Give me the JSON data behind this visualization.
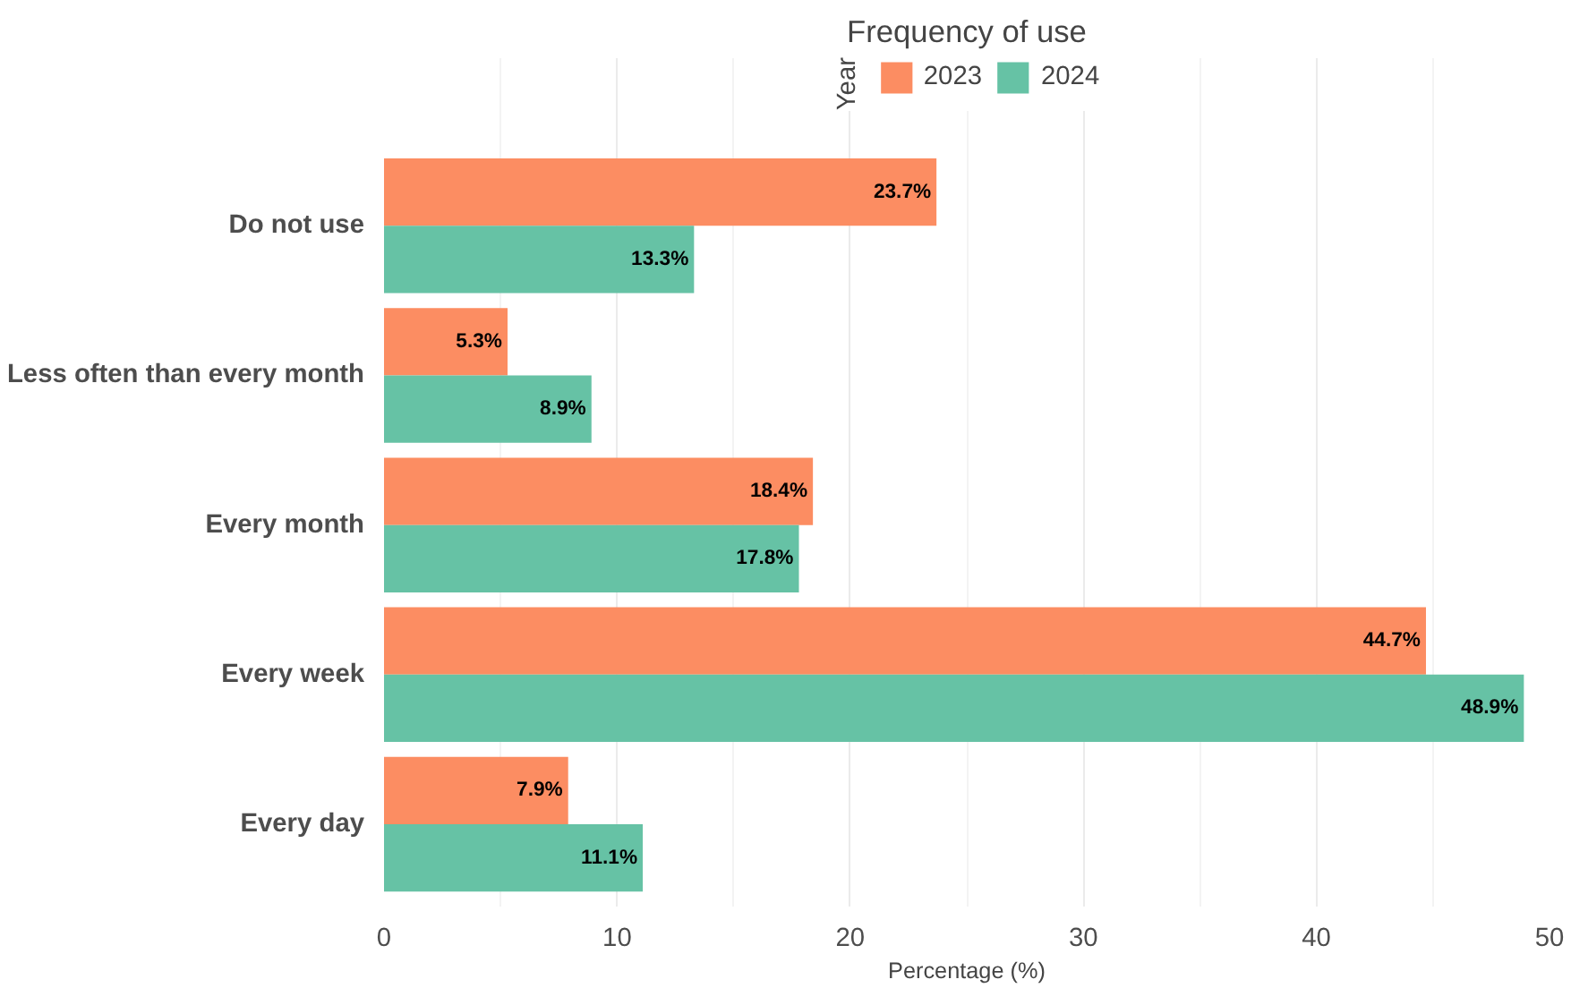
{
  "chart_data": {
    "type": "bar",
    "orientation": "horizontal",
    "title": "Frequency of use",
    "xlabel": "Percentage (%)",
    "legend_title": "Year",
    "legend": "top",
    "categories": [
      "Do not use",
      "Less often than every month",
      "Every month",
      "Every week",
      "Every day"
    ],
    "series": [
      {
        "name": "2023",
        "color": "#fc8d62",
        "values": [
          23.7,
          5.3,
          18.4,
          44.7,
          7.9
        ],
        "value_labels": [
          "23.7%",
          "5.3%",
          "18.4%",
          "44.7%",
          "7.9%"
        ]
      },
      {
        "name": "2024",
        "color": "#66c2a5",
        "values": [
          13.3,
          8.9,
          17.8,
          48.9,
          11.1
        ],
        "value_labels": [
          "13.3%",
          "8.9%",
          "17.8%",
          "48.9%",
          "11.1%"
        ]
      }
    ],
    "xlim": [
      0,
      50
    ],
    "xticks": [
      0,
      10,
      20,
      30,
      40,
      50
    ],
    "grid": "x"
  }
}
